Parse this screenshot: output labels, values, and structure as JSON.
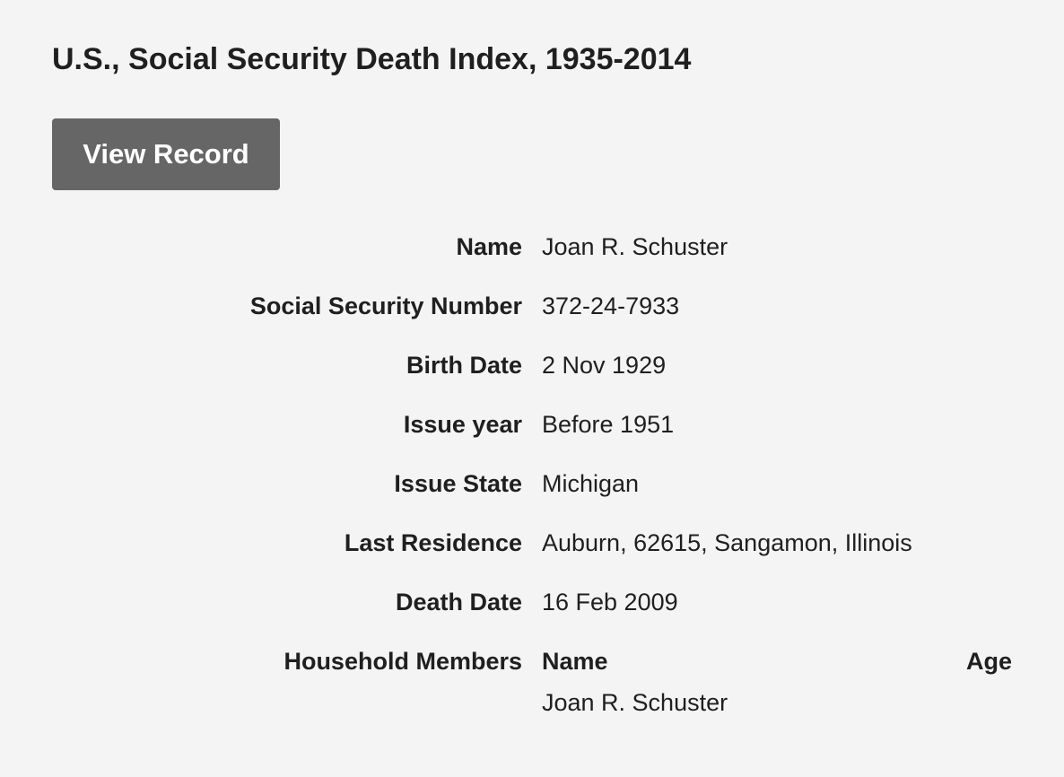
{
  "header": {
    "title": "U.S., Social Security Death Index, 1935-2014"
  },
  "button": {
    "label": "View Record"
  },
  "fields": [
    {
      "label": "Name",
      "value": "Joan R. Schuster"
    },
    {
      "label": "Social Security Number",
      "value": "372-24-7933"
    },
    {
      "label": "Birth Date",
      "value": "2 Nov 1929"
    },
    {
      "label": "Issue year",
      "value": "Before 1951"
    },
    {
      "label": "Issue State",
      "value": "Michigan"
    },
    {
      "label": "Last Residence",
      "value": "Auburn, 62615, Sangamon, Illinois"
    },
    {
      "label": "Death Date",
      "value": "16 Feb 2009"
    }
  ],
  "household": {
    "label": "Household Members",
    "columns": [
      "Name",
      "Age"
    ],
    "rows": [
      [
        "Joan R. Schuster"
      ]
    ]
  }
}
